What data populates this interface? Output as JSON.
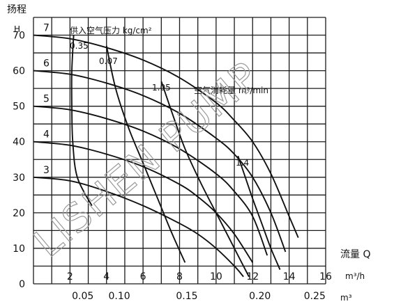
{
  "chart_data": {
    "type": "line",
    "title": "",
    "ylabel": "扬程",
    "ylabel_unit": "H",
    "xlabel": "流量 Q",
    "xlabel_unit_primary": "m³/h",
    "xlabel_unit_secondary": "m³",
    "xlim": [
      0,
      16
    ],
    "ylim": [
      0,
      75
    ],
    "x_ticks": [
      2,
      4,
      6,
      8,
      10,
      12,
      14,
      16
    ],
    "y_ticks": [
      0,
      10,
      20,
      30,
      40,
      50,
      60,
      70
    ],
    "x2_ticks": [
      "0.05",
      "0.10",
      "0.15",
      "0.20",
      "0.25"
    ],
    "x2_tick_positions": [
      2.7,
      4.7,
      8.4,
      12.4,
      15.4
    ],
    "grid": true,
    "air_pressure_label": "供入空气压力  kg/cm²",
    "air_consumption_label": "空气消耗量  m³/min",
    "series": [
      {
        "name": "7",
        "points": [
          [
            0,
            70
          ],
          [
            2,
            69
          ],
          [
            4,
            66.5
          ],
          [
            6,
            63
          ],
          [
            8,
            58
          ],
          [
            10,
            51
          ],
          [
            11,
            46
          ],
          [
            12,
            40
          ],
          [
            13,
            31
          ],
          [
            14,
            19
          ],
          [
            14.5,
            13
          ]
        ]
      },
      {
        "name": "6",
        "points": [
          [
            0,
            60
          ],
          [
            2,
            59
          ],
          [
            4,
            56.5
          ],
          [
            6,
            53
          ],
          [
            8,
            48
          ],
          [
            10,
            41
          ],
          [
            11,
            36.5
          ],
          [
            12,
            30
          ],
          [
            13,
            20
          ],
          [
            13.8,
            9
          ]
        ]
      },
      {
        "name": "5",
        "points": [
          [
            0,
            50
          ],
          [
            2,
            49
          ],
          [
            4,
            46.5
          ],
          [
            6,
            43
          ],
          [
            8,
            38
          ],
          [
            10,
            31
          ],
          [
            11,
            26
          ],
          [
            12,
            19
          ],
          [
            12.8,
            8
          ]
        ]
      },
      {
        "name": "4",
        "points": [
          [
            0,
            40
          ],
          [
            2,
            39
          ],
          [
            4,
            36.5
          ],
          [
            6,
            33
          ],
          [
            8,
            28
          ],
          [
            9,
            24.5
          ],
          [
            10,
            20
          ],
          [
            11,
            14
          ],
          [
            12,
            6
          ]
        ]
      },
      {
        "name": "3",
        "points": [
          [
            0,
            30
          ],
          [
            2,
            29
          ],
          [
            4,
            26
          ],
          [
            6,
            22
          ],
          [
            8,
            17
          ],
          [
            9,
            14
          ],
          [
            10,
            10
          ],
          [
            11,
            5
          ],
          [
            11.5,
            2
          ]
        ]
      }
    ],
    "pressure_levels": [
      "7",
      "6",
      "5",
      "4",
      "3"
    ],
    "air_consumption_curves": [
      {
        "name": "0.35",
        "points": [
          [
            2.2,
            70
          ],
          [
            2.1,
            60
          ],
          [
            2.1,
            50
          ],
          [
            2.15,
            40
          ],
          [
            2.4,
            30
          ],
          [
            3.2,
            22
          ]
        ]
      },
      {
        "name": "0.07",
        "points": [
          [
            4.0,
            67
          ],
          [
            4.5,
            55
          ],
          [
            5.2,
            44
          ],
          [
            6.0,
            34
          ],
          [
            6.8,
            24
          ],
          [
            7.6,
            14
          ],
          [
            8.3,
            6
          ]
        ]
      },
      {
        "name": "1.05",
        "points": [
          [
            7.0,
            57
          ],
          [
            7.6,
            48
          ],
          [
            8.3,
            38
          ],
          [
            9.2,
            28
          ],
          [
            10.2,
            18
          ],
          [
            11.2,
            8
          ],
          [
            11.8,
            2
          ]
        ]
      },
      {
        "name": "1.4",
        "points": [
          [
            11.2,
            36
          ],
          [
            11.6,
            30
          ],
          [
            12.0,
            24
          ],
          [
            12.5,
            17
          ],
          [
            13.0,
            10
          ],
          [
            13.5,
            4
          ]
        ]
      }
    ],
    "watermark": "LISHEN PUMP"
  }
}
